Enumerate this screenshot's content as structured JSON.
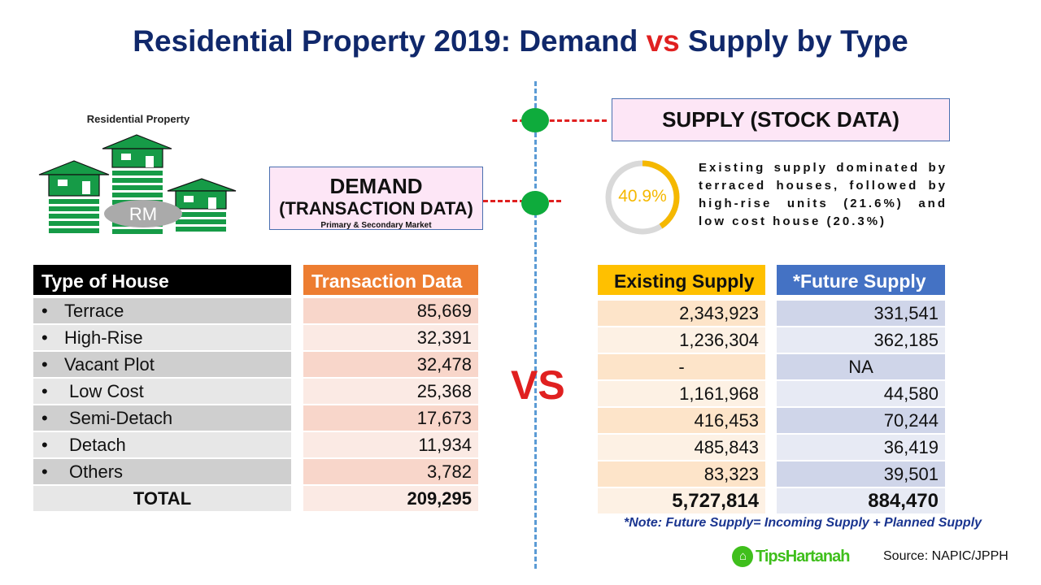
{
  "title": {
    "part1": "Residential Property 2019: Demand ",
    "vs": "vs",
    "part2": " Supply by Type"
  },
  "logo": {
    "label": "Residential Property",
    "badge": "RM"
  },
  "demand_box": {
    "title": "DEMAND",
    "subtitle": "(TRANSACTION DATA)",
    "note": "Primary & Secondary Market"
  },
  "supply_box": {
    "title": "SUPPLY (STOCK DATA)"
  },
  "highlight": {
    "percent": "40.9%",
    "percent_value": 40.9,
    "description": "Existing supply dominated by terraced houses, followed by high-rise units (21.6%) and low cost house (20.3%)"
  },
  "vs_label": "VS",
  "colors": {
    "title": "#10286b",
    "accent_red": "#e02020",
    "transaction_header": "#ed7d31",
    "existing_header": "#ffc000",
    "future_header": "#4472c4",
    "donut": "#f5b800"
  },
  "demand_table": {
    "headers": {
      "type": "Type of House",
      "transaction": "Transaction Data"
    },
    "rows": [
      {
        "type": "Terrace",
        "transaction": "85,669"
      },
      {
        "type": "High-Rise",
        "transaction": "32,391"
      },
      {
        "type": "Vacant Plot",
        "transaction": "32,478"
      },
      {
        "type": "Low Cost",
        "transaction": "25,368"
      },
      {
        "type": "Semi-Detach",
        "transaction": "17,673"
      },
      {
        "type": "Detach",
        "transaction": "11,934"
      },
      {
        "type": "Others",
        "transaction": "3,782"
      }
    ],
    "total": {
      "label": "TOTAL",
      "transaction": "209,295"
    }
  },
  "supply_table": {
    "headers": {
      "existing": "Existing Supply",
      "future": "*Future Supply"
    },
    "rows": [
      {
        "existing": "2,343,923",
        "future": "331,541"
      },
      {
        "existing": "1,236,304",
        "future": "362,185"
      },
      {
        "existing": "-",
        "future": "NA"
      },
      {
        "existing": "1,161,968",
        "future": "44,580"
      },
      {
        "existing": "416,453",
        "future": "70,244"
      },
      {
        "existing": "485,843",
        "future": "36,419"
      },
      {
        "existing": "83,323",
        "future": "39,501"
      }
    ],
    "total": {
      "existing": "5,727,814",
      "future": "884,470"
    }
  },
  "note": "*Note: Future Supply= Incoming Supply + Planned Supply",
  "brand": "TipsHartanah",
  "source": "Source: NAPIC/JPPH"
}
